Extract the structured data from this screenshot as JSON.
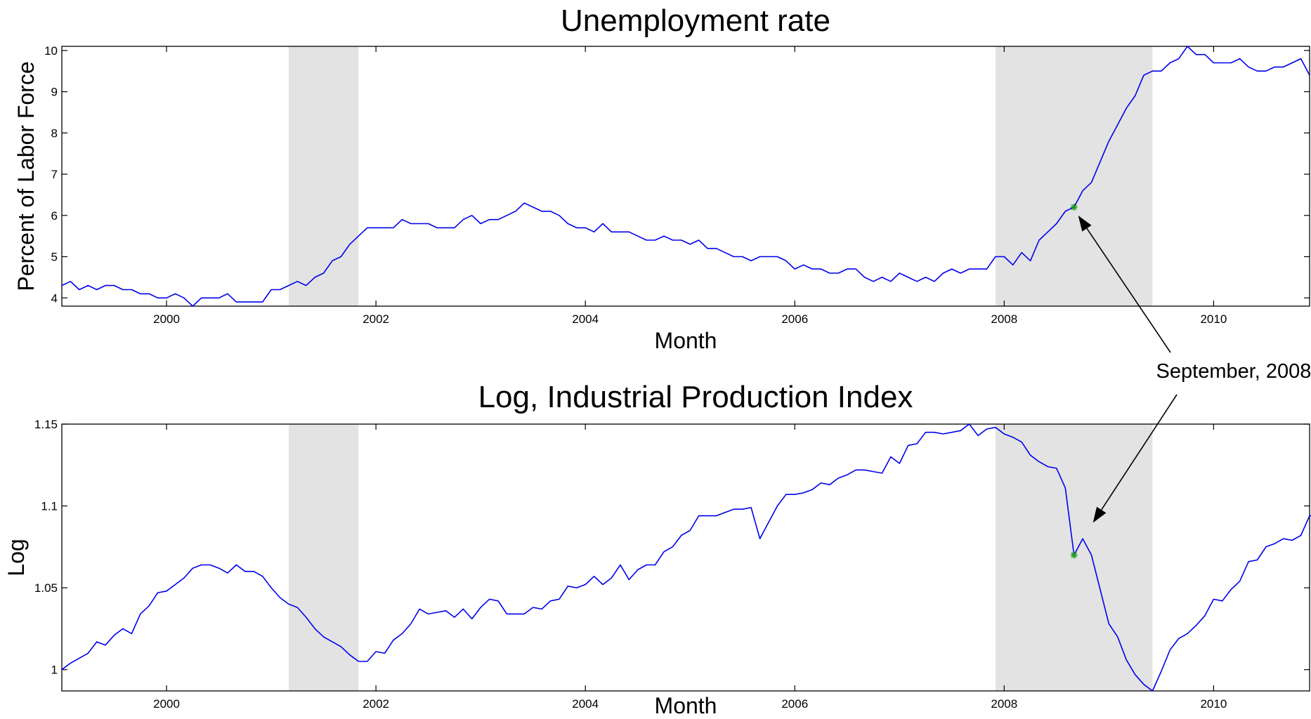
{
  "chart_data": [
    {
      "type": "line",
      "title": "Unemployment rate",
      "xlabel": "Month",
      "ylabel": "Percent of Labor Force",
      "xlim": [
        "1999-01",
        "2010-12"
      ],
      "ylim": [
        3.8,
        10.1
      ],
      "grid": false,
      "x_ticks": [
        "2000",
        "2002",
        "2004",
        "2006",
        "2008",
        "2010"
      ],
      "y_ticks": [
        "4",
        "5",
        "6",
        "7",
        "8",
        "9",
        "10"
      ],
      "recessions": [
        {
          "start": "2001-03",
          "end": "2001-11"
        },
        {
          "start": "2007-12",
          "end": "2009-06"
        }
      ],
      "highlight": {
        "date": "2008-09",
        "value": 6.2
      },
      "series": [
        {
          "start": "1999-01",
          "frequency": "monthly",
          "values": [
            4.3,
            4.4,
            4.2,
            4.3,
            4.2,
            4.3,
            4.3,
            4.2,
            4.2,
            4.1,
            4.1,
            4.0,
            4.0,
            4.1,
            4.0,
            3.8,
            4.0,
            4.0,
            4.0,
            4.1,
            3.9,
            3.9,
            3.9,
            3.9,
            4.2,
            4.2,
            4.3,
            4.4,
            4.3,
            4.5,
            4.6,
            4.9,
            5.0,
            5.3,
            5.5,
            5.7,
            5.7,
            5.7,
            5.7,
            5.9,
            5.8,
            5.8,
            5.8,
            5.7,
            5.7,
            5.7,
            5.9,
            6.0,
            5.8,
            5.9,
            5.9,
            6.0,
            6.1,
            6.3,
            6.2,
            6.1,
            6.1,
            6.0,
            5.8,
            5.7,
            5.7,
            5.6,
            5.8,
            5.6,
            5.6,
            5.6,
            5.5,
            5.4,
            5.4,
            5.5,
            5.4,
            5.4,
            5.3,
            5.4,
            5.2,
            5.2,
            5.1,
            5.0,
            5.0,
            4.9,
            5.0,
            5.0,
            5.0,
            4.9,
            4.7,
            4.8,
            4.7,
            4.7,
            4.6,
            4.6,
            4.7,
            4.7,
            4.5,
            4.4,
            4.5,
            4.4,
            4.6,
            4.5,
            4.4,
            4.5,
            4.4,
            4.6,
            4.7,
            4.6,
            4.7,
            4.7,
            4.7,
            5.0,
            5.0,
            4.8,
            5.1,
            4.9,
            5.4,
            5.6,
            5.8,
            6.1,
            6.2,
            6.6,
            6.8,
            7.3,
            7.8,
            8.2,
            8.6,
            8.9,
            9.4,
            9.5,
            9.5,
            9.7,
            9.8,
            10.1,
            9.9,
            9.9,
            9.7,
            9.7,
            9.7,
            9.8,
            9.6,
            9.5,
            9.5,
            9.6,
            9.6,
            9.7,
            9.8,
            9.4
          ]
        }
      ]
    },
    {
      "type": "line",
      "title": "Log, Industrial Production Index",
      "xlabel": "Month",
      "ylabel": "Log",
      "xlim": [
        "1999-01",
        "2010-12"
      ],
      "ylim": [
        0.987,
        1.15
      ],
      "grid": false,
      "x_ticks": [
        "2000",
        "2002",
        "2004",
        "2006",
        "2008",
        "2010"
      ],
      "y_ticks": [
        "1",
        "1.05",
        "1.1",
        "1.15"
      ],
      "recessions": [
        {
          "start": "2001-03",
          "end": "2001-11"
        },
        {
          "start": "2007-12",
          "end": "2009-06"
        }
      ],
      "highlight": {
        "date": "2008-09",
        "value": 1.07
      },
      "series": [
        {
          "start": "1999-01",
          "frequency": "monthly",
          "values": [
            1.0,
            1.004,
            1.007,
            1.01,
            1.017,
            1.015,
            1.021,
            1.025,
            1.022,
            1.034,
            1.039,
            1.047,
            1.048,
            1.052,
            1.056,
            1.062,
            1.064,
            1.064,
            1.062,
            1.059,
            1.064,
            1.06,
            1.06,
            1.057,
            1.05,
            1.044,
            1.04,
            1.038,
            1.032,
            1.025,
            1.02,
            1.017,
            1.014,
            1.009,
            1.005,
            1.005,
            1.011,
            1.01,
            1.018,
            1.022,
            1.028,
            1.037,
            1.034,
            1.035,
            1.036,
            1.032,
            1.037,
            1.031,
            1.038,
            1.043,
            1.042,
            1.034,
            1.034,
            1.034,
            1.038,
            1.037,
            1.042,
            1.043,
            1.051,
            1.05,
            1.052,
            1.057,
            1.052,
            1.056,
            1.064,
            1.055,
            1.061,
            1.064,
            1.064,
            1.072,
            1.075,
            1.082,
            1.085,
            1.094,
            1.094,
            1.094,
            1.096,
            1.098,
            1.098,
            1.099,
            1.08,
            1.09,
            1.1,
            1.107,
            1.107,
            1.108,
            1.11,
            1.114,
            1.113,
            1.117,
            1.119,
            1.122,
            1.122,
            1.121,
            1.12,
            1.13,
            1.126,
            1.137,
            1.138,
            1.145,
            1.145,
            1.144,
            1.145,
            1.146,
            1.15,
            1.143,
            1.147,
            1.148,
            1.144,
            1.142,
            1.139,
            1.131,
            1.127,
            1.124,
            1.123,
            1.111,
            1.07,
            1.08,
            1.07,
            1.049,
            1.028,
            1.02,
            1.006,
            0.997,
            0.991,
            0.987,
            0.999,
            1.012,
            1.019,
            1.022,
            1.027,
            1.033,
            1.043,
            1.042,
            1.049,
            1.054,
            1.066,
            1.067,
            1.075,
            1.077,
            1.08,
            1.079,
            1.082,
            1.094,
            1.094
          ]
        }
      ]
    }
  ],
  "annotation": {
    "text": "September, 2008"
  }
}
